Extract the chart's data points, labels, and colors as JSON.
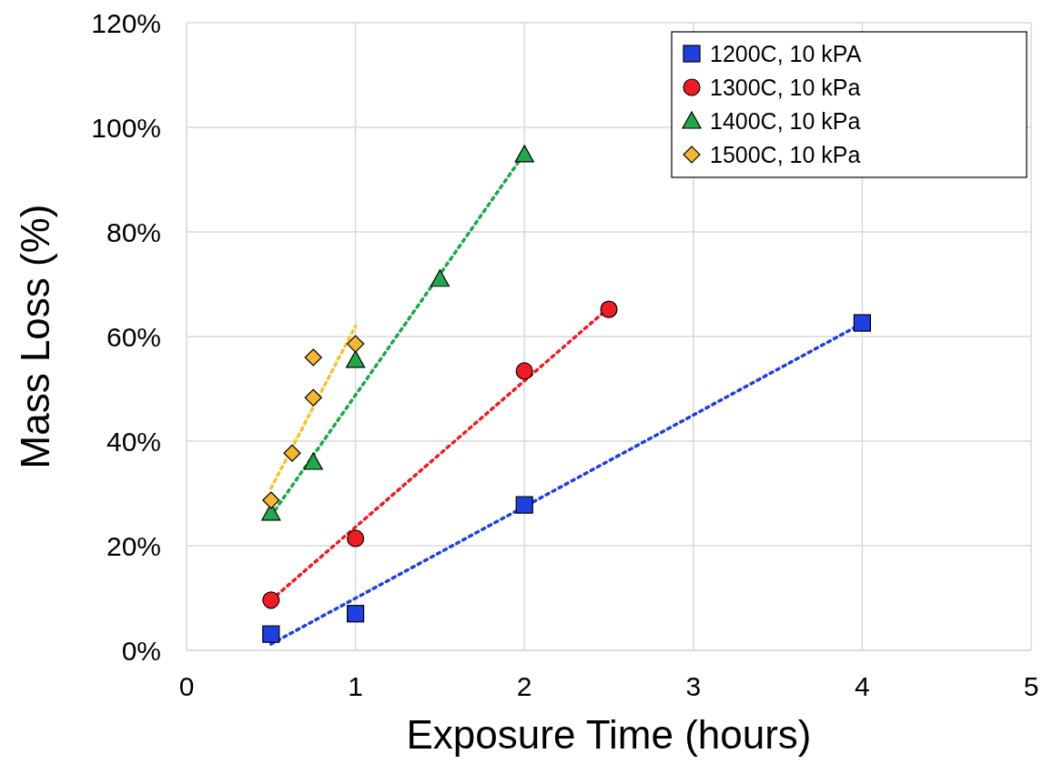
{
  "chart_data": {
    "type": "scatter",
    "xlabel": "Exposure Time (hours)",
    "ylabel": "Mass Loss (%)",
    "xlim": [
      0,
      5
    ],
    "xticks": [
      0,
      1,
      2,
      3,
      4,
      5
    ],
    "ylim": [
      0,
      120
    ],
    "yticks": [
      {
        "value": 0,
        "label": "0%"
      },
      {
        "value": 20,
        "label": "20%"
      },
      {
        "value": 40,
        "label": "40%"
      },
      {
        "value": 60,
        "label": "60%"
      },
      {
        "value": 80,
        "label": "80%"
      },
      {
        "value": 100,
        "label": "100%"
      },
      {
        "value": 120,
        "label": "120%"
      }
    ],
    "grid": true,
    "legend": "top right",
    "series": [
      {
        "type": "line",
        "line_style": "dotted",
        "marker": "none",
        "color": "#1f3fdf",
        "x": [
          0.5,
          4
        ],
        "values": [
          1.2,
          62.5
        ]
      },
      {
        "type": "line",
        "line_style": "dotted",
        "marker": "none",
        "color": "#ee1c24",
        "x": [
          0.5,
          2.5
        ],
        "values": [
          9.6,
          65.5
        ]
      },
      {
        "type": "line",
        "line_style": "dotted",
        "marker": "none",
        "color": "#1aa84a",
        "x": [
          0.5,
          2
        ],
        "values": [
          25.7,
          95
        ]
      },
      {
        "type": "line",
        "line_style": "dotted",
        "marker": "none",
        "color": "#fbc02d",
        "x": [
          0.5,
          1
        ],
        "values": [
          31,
          62
        ]
      },
      {
        "name": "1200C, 10 kPA",
        "marker": "square",
        "color": "#1f3fdf",
        "x": [
          0.5,
          1,
          2,
          4
        ],
        "values": [
          3.1,
          7,
          27.8,
          62.6
        ]
      },
      {
        "name": "1300C, 10 kPa",
        "marker": "circle",
        "color": "#ee1c24",
        "x": [
          0.5,
          1,
          2,
          2.5
        ],
        "values": [
          9.6,
          21.4,
          53.4,
          65.2
        ]
      },
      {
        "name": "1400C, 10 kPa",
        "marker": "triangle",
        "color": "#22a84a",
        "x": [
          0.5,
          0.75,
          1,
          1.5,
          2
        ],
        "values": [
          26.3,
          36,
          55.5,
          71,
          94.8
        ]
      },
      {
        "name": "1500C, 10 kPa",
        "marker": "diamond",
        "color": "#f5b731",
        "x": [
          0.5,
          0.625,
          0.75,
          0.75,
          1
        ],
        "values": [
          28.7,
          37.7,
          48.3,
          56,
          58.6
        ]
      }
    ]
  }
}
